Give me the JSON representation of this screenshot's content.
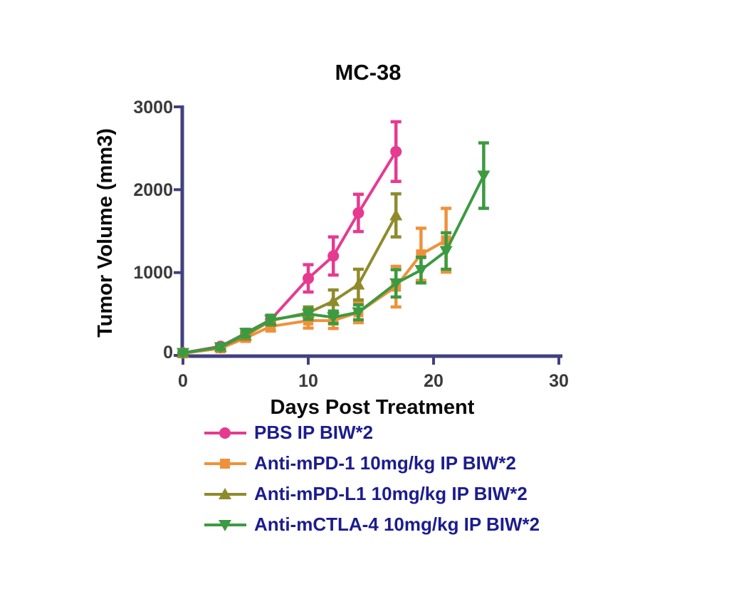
{
  "chart_data": {
    "type": "line",
    "title": "MC-38",
    "xlabel": "Days Post Treatment",
    "ylabel": "Tumor Volume (mm3)",
    "xlim": [
      0,
      30
    ],
    "ylim": [
      0,
      3000
    ],
    "xticks": [
      "0",
      "10",
      "20",
      "30"
    ],
    "yticks": [
      "0",
      "1000",
      "2000",
      "3000"
    ],
    "grid": false,
    "error_bars": true,
    "legend_position": "below-left",
    "axis_color": "#41417f",
    "tick_label_color": "#3a3a3a",
    "legend_text_color": "#1c1c8e",
    "title_color": "#0a0a0a",
    "series": [
      {
        "name": "PBS IP BIW*2",
        "marker": "circle",
        "color": "#e63a90",
        "x": [
          0,
          3,
          5,
          7,
          10,
          12,
          14,
          17
        ],
        "y": [
          30,
          110,
          265,
          430,
          930,
          1200,
          1720,
          2460
        ],
        "err": [
          15,
          25,
          45,
          50,
          165,
          230,
          225,
          360
        ]
      },
      {
        "name": "Anti-mPD-1 10mg/kg IP BIW*2",
        "marker": "square",
        "color": "#f0913a",
        "x": [
          0,
          3,
          5,
          7,
          10,
          12,
          14,
          17,
          19,
          21
        ],
        "y": [
          25,
          85,
          210,
          350,
          420,
          420,
          520,
          830,
          1220,
          1390
        ],
        "err": [
          12,
          20,
          40,
          55,
          90,
          95,
          125,
          245,
          315,
          385
        ]
      },
      {
        "name": "Anti-mPD-L1 10mg/kg IP BIW*2",
        "marker": "triangle-up",
        "color": "#8f8b2b",
        "x": [
          0,
          3,
          5,
          7,
          10,
          12,
          14,
          17
        ],
        "y": [
          30,
          100,
          240,
          420,
          515,
          655,
          855,
          1690
        ],
        "err": [
          15,
          25,
          45,
          55,
          70,
          135,
          185,
          260
        ]
      },
      {
        "name": "Anti-mCTLA-4 10mg/kg IP BIW*2",
        "marker": "triangle-down",
        "color": "#3c9a40",
        "x": [
          0,
          3,
          5,
          7,
          10,
          12,
          14,
          17,
          19,
          21,
          24
        ],
        "y": [
          30,
          100,
          270,
          430,
          500,
          460,
          520,
          870,
          1030,
          1260,
          2170
        ],
        "err": [
          15,
          25,
          45,
          55,
          65,
          75,
          90,
          165,
          155,
          220,
          395
        ]
      }
    ]
  }
}
